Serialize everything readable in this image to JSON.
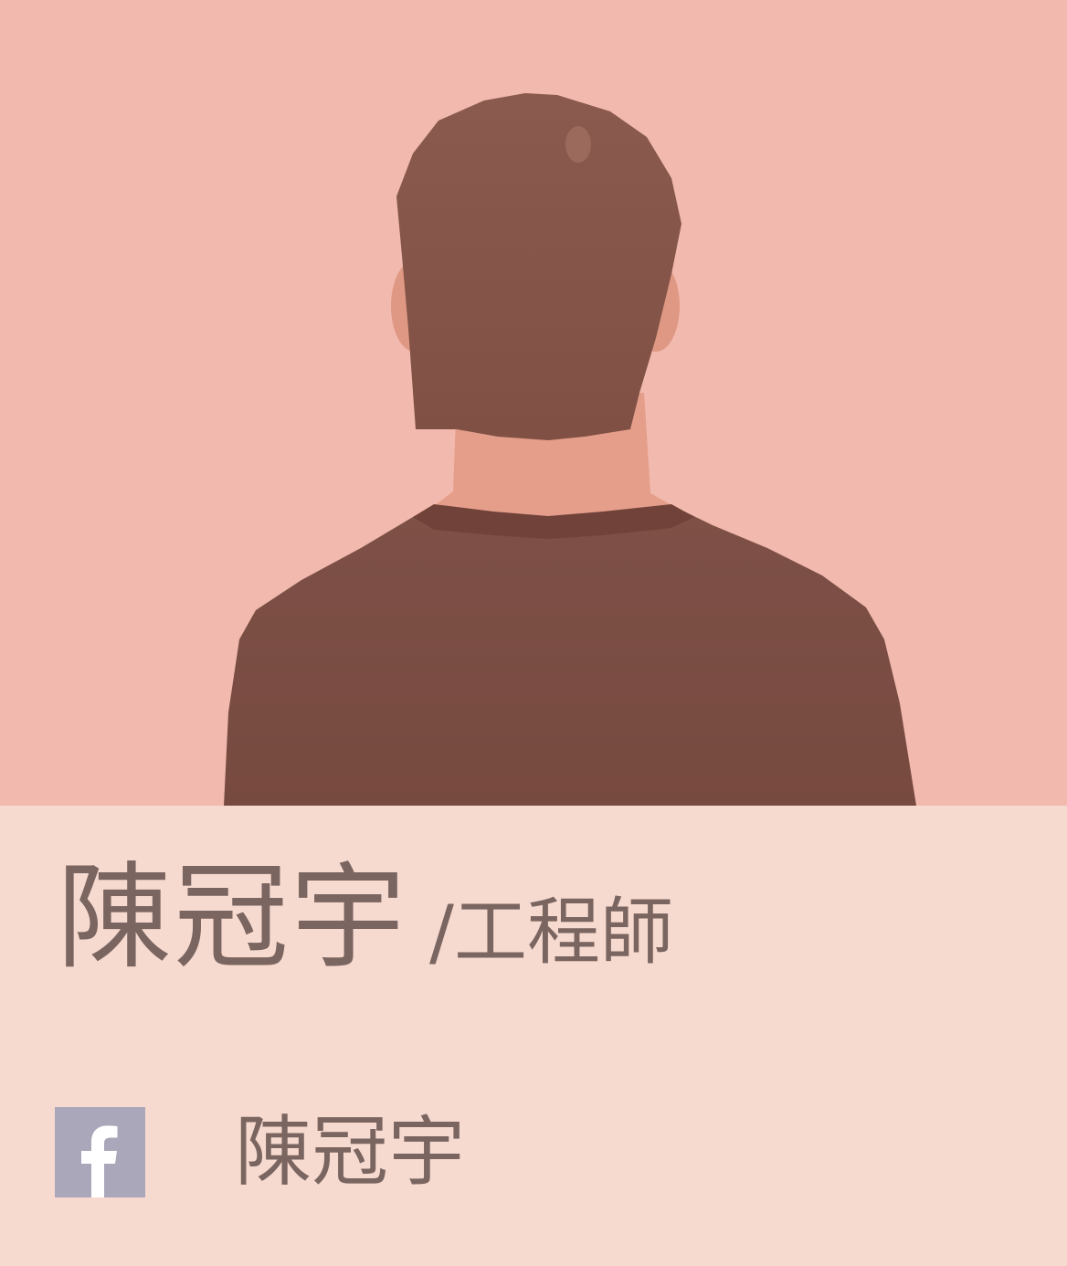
{
  "profile": {
    "name": "陳冠宇",
    "role": "/工程師"
  },
  "social": {
    "icon": "facebook-icon",
    "name": "陳冠宇"
  },
  "colors": {
    "photo_background": "#f2b9ae",
    "info_background": "#f7dacf",
    "text": "#7a6560",
    "icon_background": "#aba7bb"
  }
}
